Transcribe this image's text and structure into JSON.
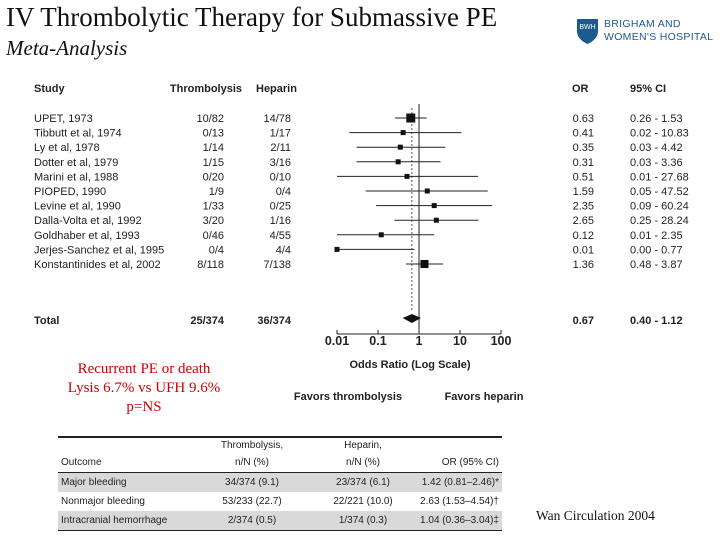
{
  "slide": {
    "title": "IV Thrombolytic Therapy for Submassive PE",
    "subtitle": "Meta-Analysis",
    "logo": {
      "line1": "BRIGHAM AND",
      "line2": "WOMEN'S HOSPITAL",
      "mark": "BWH"
    },
    "summary": [
      "Recurrent PE or death",
      "Lysis 6.7% vs UFH 9.6%",
      "p=NS"
    ],
    "citation": "Wan Circulation 2004",
    "colors": {
      "summary_text": "#cc0000",
      "logo": "#1d5a8e",
      "shade": "#d9d9d9"
    }
  },
  "chart_data": {
    "type": "forest",
    "columns": {
      "study": "Study",
      "lysis": "Thrombolysis",
      "heparin": "Heparin",
      "or": "OR",
      "ci": "95% CI"
    },
    "studies": [
      {
        "name": "UPET, 1973",
        "lysis": "10/82",
        "heparin": "14/78",
        "or": 0.63,
        "ci_low": 0.26,
        "ci_high": 1.53,
        "ci_text": "0.26 - 1.53"
      },
      {
        "name": "Tibbutt et al, 1974",
        "lysis": "0/13",
        "heparin": "1/17",
        "or": 0.41,
        "ci_low": 0.02,
        "ci_high": 10.83,
        "ci_text": "0.02 - 10.83"
      },
      {
        "name": "Ly et al, 1978",
        "lysis": "1/14",
        "heparin": "2/11",
        "or": 0.35,
        "ci_low": 0.03,
        "ci_high": 4.42,
        "ci_text": "0.03 - 4.42"
      },
      {
        "name": "Dotter et al, 1979",
        "lysis": "1/15",
        "heparin": "3/16",
        "or": 0.31,
        "ci_low": 0.03,
        "ci_high": 3.36,
        "ci_text": "0.03 - 3.36"
      },
      {
        "name": "Marini et al, 1988",
        "lysis": "0/20",
        "heparin": "0/10",
        "or": 0.51,
        "ci_low": 0.01,
        "ci_high": 27.68,
        "ci_text": "0.01 - 27.68"
      },
      {
        "name": "PIOPED, 1990",
        "lysis": "1/9",
        "heparin": "0/4",
        "or": 1.59,
        "ci_low": 0.05,
        "ci_high": 47.52,
        "ci_text": "0.05 - 47.52"
      },
      {
        "name": "Levine et al, 1990",
        "lysis": "1/33",
        "heparin": "0/25",
        "or": 2.35,
        "ci_low": 0.09,
        "ci_high": 60.24,
        "ci_text": "0.09 - 60.24"
      },
      {
        "name": "Dalla-Volta et al, 1992",
        "lysis": "3/20",
        "heparin": "1/16",
        "or": 2.65,
        "ci_low": 0.25,
        "ci_high": 28.24,
        "ci_text": "0.25 - 28.24"
      },
      {
        "name": "Goldhaber et al, 1993",
        "lysis": "0/46",
        "heparin": "4/55",
        "or": 0.12,
        "ci_low": 0.01,
        "ci_high": 2.35,
        "ci_text": "0.01 - 2.35"
      },
      {
        "name": "Jerjes-Sanchez et al, 1995",
        "lysis": "0/4",
        "heparin": "4/4",
        "or": 0.01,
        "ci_low": 0.0,
        "ci_high": 0.77,
        "ci_text": "0.00 - 0.77"
      },
      {
        "name": "Konstantinides et al, 2002",
        "lysis": "8/118",
        "heparin": "7/138",
        "or": 1.36,
        "ci_low": 0.48,
        "ci_high": 3.87,
        "ci_text": "0.48 - 3.87"
      }
    ],
    "total": {
      "name": "Total",
      "lysis": "25/374",
      "heparin": "36/374",
      "or": 0.67,
      "ci_low": 0.4,
      "ci_high": 1.12,
      "ci_text": "0.40 - 1.12"
    },
    "x_scale": "log",
    "x_ticks": [
      {
        "value": 0.01,
        "label": "0.01"
      },
      {
        "value": 0.1,
        "label": "0.1"
      },
      {
        "value": 1,
        "label": "1"
      },
      {
        "value": 10,
        "label": "10"
      },
      {
        "value": 100,
        "label": "100"
      }
    ],
    "xlabel": "Odds Ratio (Log Scale)",
    "favors_left": "Favors thrombolysis",
    "favors_right": "Favors heparin"
  },
  "outcomes_table": {
    "headers": {
      "outcome": "Outcome",
      "lysis_1": "Thrombolysis,",
      "lysis_2": "n/N (%)",
      "heparin_1": "Heparin,",
      "heparin_2": "n/N (%)",
      "or": "OR (95% CI)"
    },
    "rows": [
      {
        "outcome": "Major bleeding",
        "lysis": "34/374 (9.1)",
        "heparin": "23/374 (6.1)",
        "or": "1.42 (0.81–2.46)*",
        "shaded": true
      },
      {
        "outcome": "Nonmajor bleeding",
        "lysis": "53/233 (22.7)",
        "heparin": "22/221 (10.0)",
        "or": "2.63 (1.53–4.54)†",
        "shaded": false
      },
      {
        "outcome": "Intracranial hemorrhage",
        "lysis": "2/374 (0.5)",
        "heparin": "1/374 (0.3)",
        "or": "1.04 (0.36–3.04)‡",
        "shaded": true
      }
    ]
  }
}
